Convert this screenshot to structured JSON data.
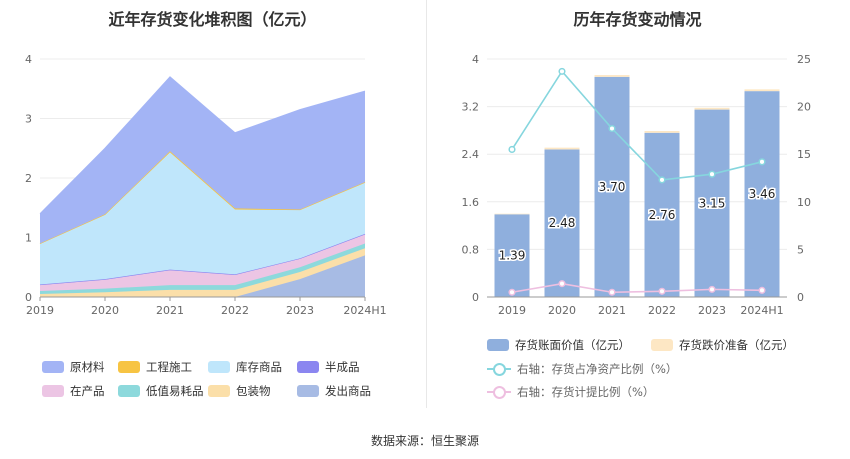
{
  "source_label": "数据来源：恒生聚源",
  "colors": {
    "原材料": "#a3b4f5",
    "工程施工": "#f7c443",
    "库存商品": "#bfe6fb",
    "半成品": "#8b86f0",
    "在产品": "#ecc5e4",
    "低值易耗品": "#8dd9dc",
    "包装物": "#fbdfa9",
    "发出商品": "#a7bbe4",
    "bar_value": "#8fafdd",
    "bar_reserve": "#fde7c4",
    "line_net": "#86d6de",
    "line_provision": "#eebfe0"
  },
  "chart_data": [
    {
      "type": "area",
      "stacked": true,
      "title": "近年存货变化堆积图（亿元）",
      "categories": [
        "2019",
        "2020",
        "2021",
        "2022",
        "2023",
        "2024H1"
      ],
      "ylim": [
        0,
        4
      ],
      "yticks": [
        "0",
        "1",
        "2",
        "3",
        "4"
      ],
      "series": [
        {
          "name": "发出商品",
          "values": [
            0.0,
            0.0,
            0.0,
            0.0,
            0.3,
            0.7
          ]
        },
        {
          "name": "包装物",
          "values": [
            0.05,
            0.08,
            0.12,
            0.12,
            0.12,
            0.12
          ]
        },
        {
          "name": "低值易耗品",
          "values": [
            0.05,
            0.06,
            0.08,
            0.08,
            0.08,
            0.08
          ]
        },
        {
          "name": "在产品",
          "values": [
            0.1,
            0.15,
            0.25,
            0.17,
            0.14,
            0.15
          ]
        },
        {
          "name": "半成品",
          "values": [
            0.01,
            0.01,
            0.01,
            0.01,
            0.01,
            0.01
          ]
        },
        {
          "name": "库存商品",
          "values": [
            0.68,
            1.08,
            1.97,
            1.09,
            0.81,
            0.86
          ]
        },
        {
          "name": "工程施工",
          "values": [
            0.01,
            0.01,
            0.02,
            0.02,
            0.01,
            0.01
          ]
        },
        {
          "name": "原材料",
          "values": [
            0.5,
            1.11,
            1.25,
            1.27,
            1.68,
            1.53
          ]
        }
      ],
      "legend": [
        "原材料",
        "工程施工",
        "库存商品",
        "半成品",
        "在产品",
        "低值易耗品",
        "包装物",
        "发出商品"
      ],
      "legend_position": "bottom"
    },
    {
      "type": "bar",
      "title": "历年存货变动情况",
      "categories": [
        "2019",
        "2020",
        "2021",
        "2022",
        "2023",
        "2024H1"
      ],
      "ylim": [
        0,
        4
      ],
      "yticks": [
        "0",
        "0.8",
        "1.6",
        "2.4",
        "3.2",
        "4"
      ],
      "y2lim": [
        0,
        25
      ],
      "y2ticks": [
        "0",
        "5",
        "10",
        "15",
        "20",
        "25"
      ],
      "series": [
        {
          "name": "存货账面价值（亿元）",
          "kind": "bar",
          "values": [
            1.39,
            2.48,
            3.7,
            2.76,
            3.15,
            3.46
          ],
          "labels": [
            "1.39",
            "2.48",
            "3.70",
            "2.76",
            "3.15",
            "3.46"
          ]
        },
        {
          "name": "存货跌价准备（亿元）",
          "kind": "bar",
          "stacked_on": 0,
          "values": [
            0.01,
            0.03,
            0.03,
            0.03,
            0.03,
            0.03
          ]
        },
        {
          "name": "右轴：存货占净资产比例（%）",
          "kind": "line",
          "axis": "right",
          "values": [
            15.5,
            23.7,
            17.7,
            12.3,
            12.9,
            14.2
          ]
        },
        {
          "name": "右轴：存货计提比例（%）",
          "kind": "line",
          "axis": "right",
          "values": [
            0.5,
            1.4,
            0.5,
            0.6,
            0.8,
            0.7
          ]
        }
      ],
      "legend_position": "bottom"
    }
  ]
}
